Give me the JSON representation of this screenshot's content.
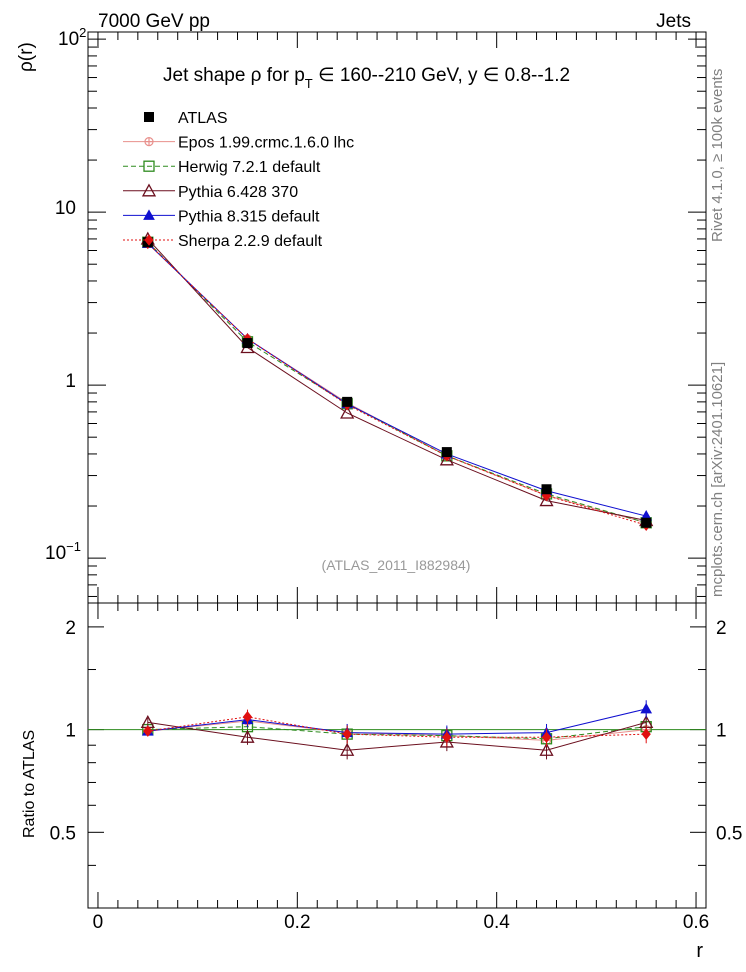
{
  "header": {
    "left": "7000 GeV pp",
    "right": "Jets"
  },
  "side_text": {
    "rivet": "Rivet 4.1.0, ≥ 100k events",
    "mcplots": "mcplots.cern.ch [arXiv:2401.10621]"
  },
  "chart_data": {
    "type": "line",
    "title_parts": {
      "a": "Jet shape  ρ for p",
      "sub": "T",
      "b": " ∈ 160--210 GeV, y  ∈ 0.8--1.2"
    },
    "watermark": "(ATLAS_2011_I882984)",
    "xlabel": "r",
    "ylabel_top": "ρ(r)",
    "ylabel_bottom": "Ratio to ATLAS",
    "xlim": [
      -0.01,
      0.61
    ],
    "ylim_top": [
      0.055,
      110
    ],
    "ylim_bottom": [
      0.3,
      2.35
    ],
    "x_ticks": [
      "0",
      "0.2",
      "0.4",
      "0.6"
    ],
    "y_ticks_top": {
      "base": "10",
      "exp_hi": "2",
      "exp_lo": "−1",
      "ten": "10",
      "one": "1"
    },
    "y_ticks_bottom": [
      "0.5",
      "1",
      "2"
    ],
    "x": [
      0.05,
      0.15,
      0.25,
      0.35,
      0.45,
      0.55
    ],
    "data": {
      "name": "ATLAS",
      "values": [
        6.7,
        1.75,
        0.8,
        0.41,
        0.25,
        0.16
      ]
    },
    "series": [
      {
        "name": "Epos 1.99.crmc.1.6.0 lhc",
        "color": "#e8908c",
        "values": [
          6.6,
          1.85,
          0.79,
          0.39,
          0.23,
          0.16
        ],
        "ratio": [
          0.99,
          1.06,
          0.98,
          0.96,
          0.93,
          1.0
        ]
      },
      {
        "name": "Herwig 7.2.1 default",
        "color": "#2e8b1e",
        "values": [
          6.7,
          1.78,
          0.78,
          0.39,
          0.235,
          0.16
        ],
        "ratio": [
          1.0,
          1.02,
          0.97,
          0.96,
          0.94,
          1.02
        ]
      },
      {
        "name": "Pythia 6.428 370",
        "color": "#6b0f1e",
        "values": [
          7.0,
          1.65,
          0.69,
          0.37,
          0.215,
          0.165
        ],
        "ratio": [
          1.05,
          0.95,
          0.87,
          0.92,
          0.87,
          1.05
        ]
      },
      {
        "name": "Pythia 8.315 default",
        "color": "#1010d0",
        "values": [
          6.6,
          1.85,
          0.78,
          0.4,
          0.245,
          0.175
        ],
        "ratio": [
          0.99,
          1.07,
          0.98,
          0.97,
          0.98,
          1.15
        ]
      },
      {
        "name": "Sherpa 2.2.9 default",
        "color": "#e01010",
        "values": [
          6.6,
          1.85,
          0.77,
          0.39,
          0.23,
          0.155
        ],
        "ratio": [
          0.99,
          1.09,
          0.97,
          0.95,
          0.95,
          0.97
        ]
      }
    ],
    "ratio_errors": [
      0.03,
      0.05,
      0.06,
      0.06,
      0.06,
      0.06
    ]
  }
}
